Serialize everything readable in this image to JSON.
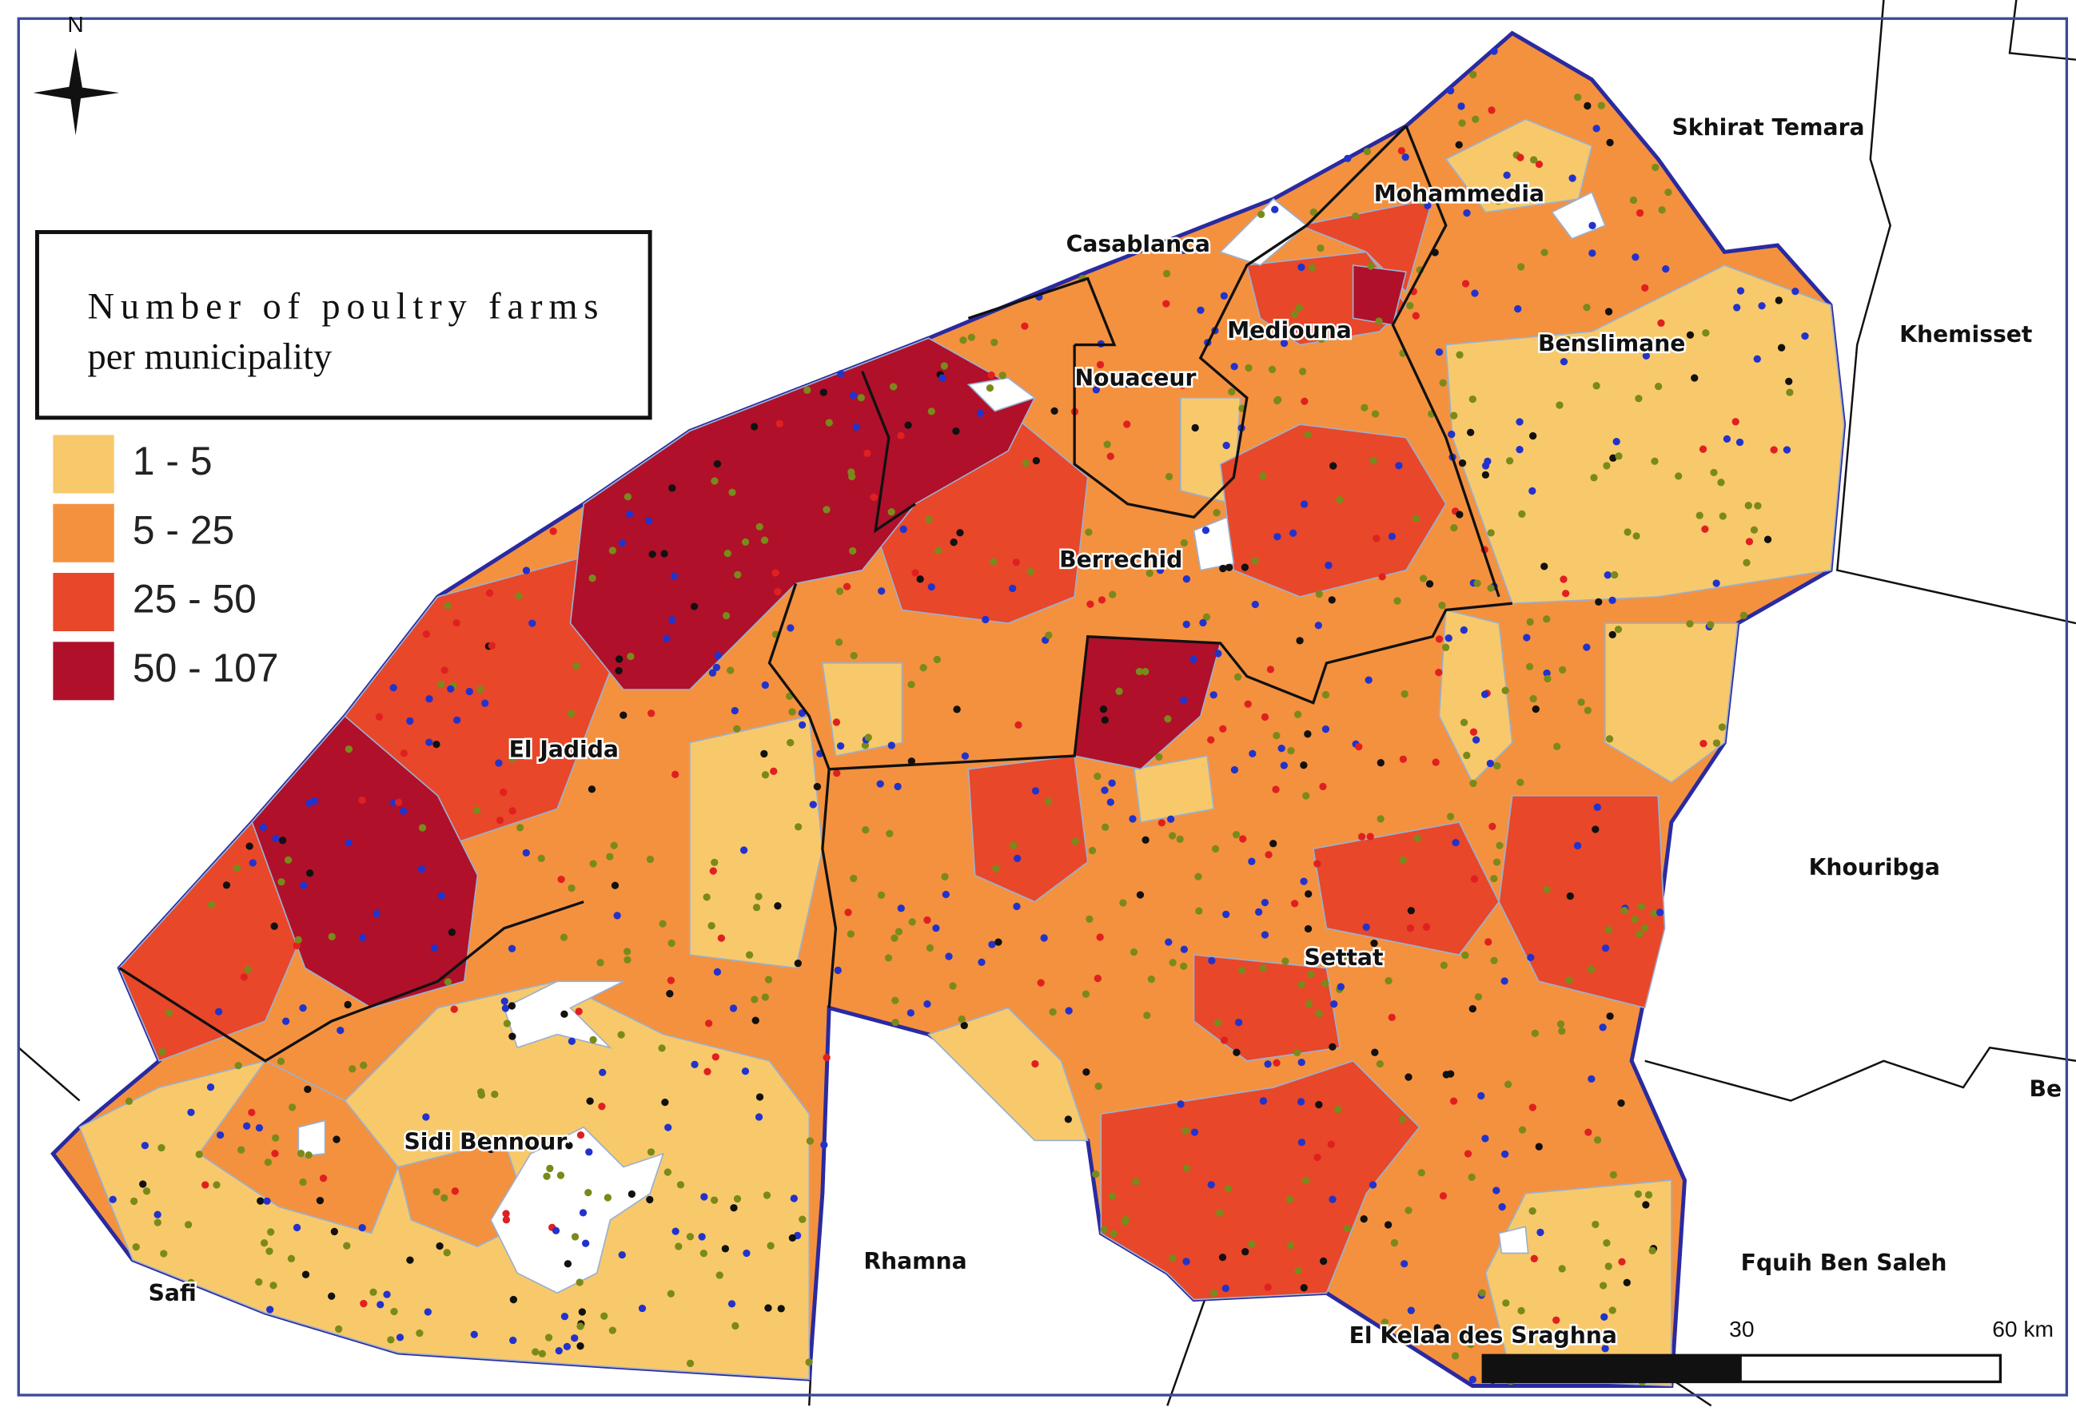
{
  "legend": {
    "title_lines": [
      "Number of poultry farms",
      "per municipality"
    ],
    "items": [
      {
        "label": "1 - 5",
        "color": "#f8c96b"
      },
      {
        "label": "5 - 25",
        "color": "#f4913f"
      },
      {
        "label": "25 - 50",
        "color": "#e8472a"
      },
      {
        "label": "50 - 107",
        "color": "#b0102a"
      }
    ]
  },
  "north": "N",
  "places": [
    "Skhirat Temara",
    "Mohammedia",
    "Casablanca",
    "Mediouna",
    "Benslimane",
    "Khemisset",
    "Nouaceur",
    "Berrechid",
    "El Jadida",
    "Khouribga",
    "Settat",
    "Sidi Bennour",
    "Rhamna",
    "Safi",
    "Fquih Ben Saleh",
    "El Kelaa des Sraghna",
    "Be"
  ],
  "scale_bar": {
    "labels": [
      "30",
      "60 km"
    ]
  }
}
